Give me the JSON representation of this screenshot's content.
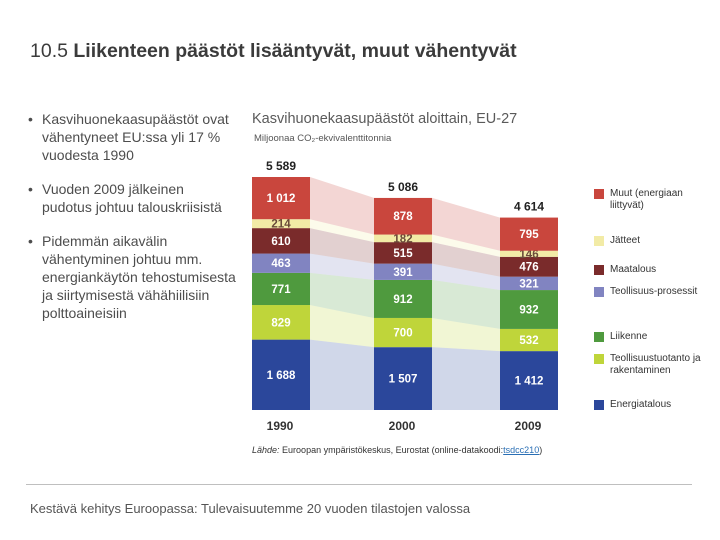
{
  "slide": {
    "title_num": "10.5",
    "title_text": "Liikenteen päästöt lisääntyvät, muut vähentyvät",
    "bullets": [
      "Kasvihuonekaasupäästöt ovat vähentyneet EU:ssa yli 17 % vuodesta 1990",
      "Vuoden 2009 jälkeinen pudotus johtuu talouskriisistä",
      "Pidemmän aikavälin vähentyminen johtuu mm. energiankäytön tehostumisesta ja siirtymisestä vähähiilisiin polttoaineisiin"
    ],
    "bullet_glyph": "•",
    "footer": "Kestävä kehitys Euroopassa: Tulevaisuutemme 20 vuoden tilastojen valossa"
  },
  "source": {
    "label": "Lähde:",
    "text": "Euroopan ympäristökeskus, Eurostat (online-datakoodi:",
    "code": "tsdcc210",
    "close": ")"
  },
  "chart_data": {
    "type": "bar",
    "stacked": true,
    "title": "Kasvihuonekaasupäästöt aloittain, EU-27",
    "unit_label": "Miljoonaa CO₂-ekvivalenttitonnia",
    "categories": [
      "1990",
      "2000",
      "2009"
    ],
    "totals": [
      "5 589",
      "5 086",
      "4 614"
    ],
    "series": [
      {
        "name": "Energiatalous",
        "color": "#2b479b",
        "values": [
          1688,
          1507,
          1412
        ],
        "labels": [
          "1 688",
          "1 507",
          "1 412"
        ]
      },
      {
        "name": "Teollisuustuotanto ja rakentaminen",
        "color": "#bfd53a",
        "values": [
          829,
          700,
          532
        ],
        "labels": [
          "829",
          "700",
          "532"
        ]
      },
      {
        "name": "Liikenne",
        "color": "#4f9a3e",
        "values": [
          771,
          912,
          932
        ],
        "labels": [
          "771",
          "912",
          "932"
        ]
      },
      {
        "name": "Teollisuusprosessit",
        "color": "#8184c1",
        "values": [
          463,
          391,
          321
        ],
        "labels": [
          "463",
          "391",
          "321"
        ]
      },
      {
        "name": "Maatalous",
        "color": "#7a2b2b",
        "values": [
          610,
          515,
          476
        ],
        "labels": [
          "610",
          "515",
          "476"
        ]
      },
      {
        "name": "Jätteet",
        "color": "#f2eba6",
        "values": [
          214,
          182,
          146
        ],
        "labels": [
          "214",
          "182",
          "146"
        ]
      },
      {
        "name": "Muut (energiaan liittyvät)",
        "color": "#c9463d",
        "values": [
          1012,
          878,
          795
        ],
        "labels": [
          "1 012",
          "878",
          "795"
        ]
      }
    ],
    "legend": [
      {
        "label": "Muut (energiaan liittyvät)",
        "color": "#c9463d"
      },
      {
        "label": "Jätteet",
        "color": "#f2eba6"
      },
      {
        "label": "Maatalous",
        "color": "#7a2b2b"
      },
      {
        "label": "Teollisuus-prosessit",
        "color": "#8184c1"
      },
      {
        "label": "Liikenne",
        "color": "#4f9a3e"
      },
      {
        "label": "Teollisuustuotanto ja rakentaminen",
        "color": "#bfd53a"
      },
      {
        "label": "Energiatalous",
        "color": "#2b479b"
      }
    ]
  }
}
